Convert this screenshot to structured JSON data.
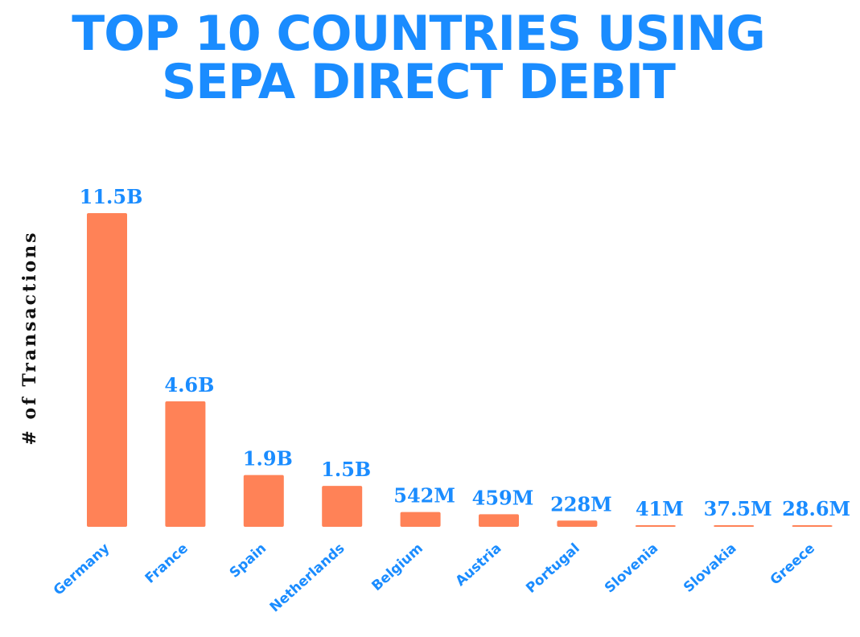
{
  "chart_data": {
    "type": "bar",
    "title_lines": [
      "TOP 10 COUNTRIES USING",
      "SEPA DIRECT DEBIT"
    ],
    "xlabel": "",
    "ylabel": "# of Transactions",
    "categories": [
      "Germany",
      "France",
      "Spain",
      "Netherlands",
      "Belgium",
      "Austria",
      "Portugal",
      "Slovenia",
      "Slovakia",
      "Greece"
    ],
    "values": [
      11500000000,
      4600000000,
      1900000000,
      1500000000,
      542000000,
      459000000,
      228000000,
      41000000,
      37500000,
      28600000
    ],
    "data_labels": [
      "11.5B",
      "4.6B",
      "1.9B",
      "1.5B",
      "542M",
      "459M",
      "228M",
      "41M",
      "37.5M",
      "28.6M"
    ],
    "ylim": [
      0,
      11500000000
    ],
    "grid": false,
    "legend": "none",
    "colors": {
      "bar": "#ff8257",
      "text": "#1a8cff",
      "axis_label": "#111111"
    }
  }
}
